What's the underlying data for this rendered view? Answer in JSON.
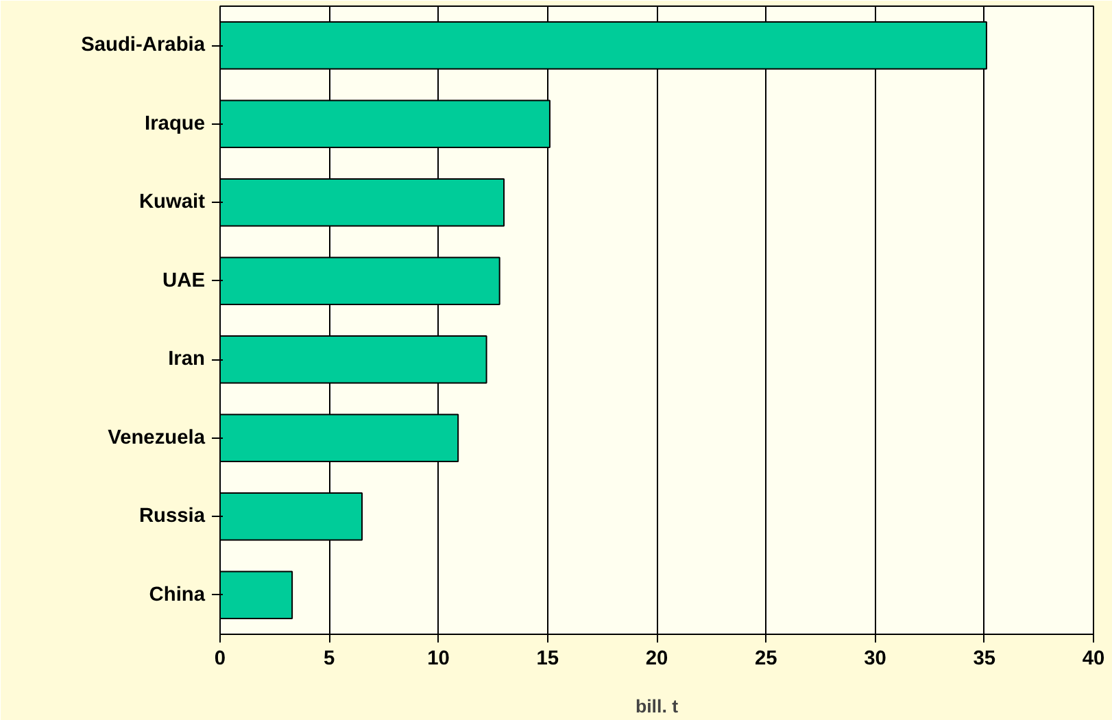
{
  "chart_data": {
    "type": "bar",
    "orientation": "horizontal",
    "xlabel": "bill. t",
    "categories": [
      "Saudi-Arabia",
      "Iraque",
      "Kuwait",
      "UAE",
      "Iran",
      "Venezuela",
      "Russia",
      "China"
    ],
    "values": [
      35.1,
      15.1,
      13.0,
      12.8,
      12.2,
      10.9,
      6.5,
      3.3
    ],
    "color": "#00cc99",
    "xlim": [
      0,
      40
    ],
    "xticks": [
      0,
      5,
      10,
      15,
      20,
      25,
      30,
      35,
      40
    ],
    "grid": "x"
  }
}
